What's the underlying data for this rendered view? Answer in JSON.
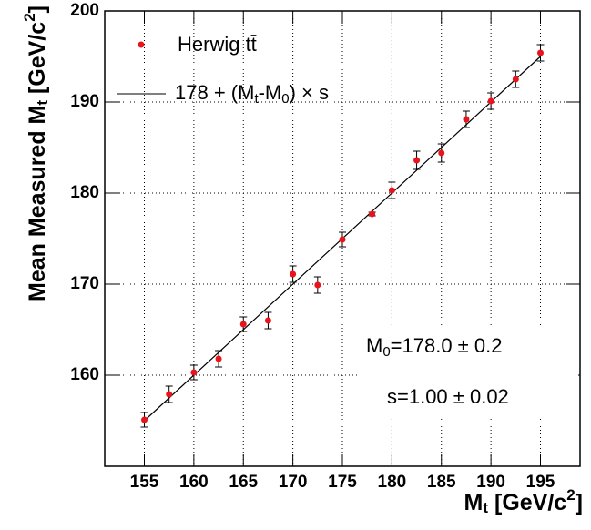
{
  "chart_data": {
    "type": "scatter",
    "x_label": [
      "M",
      "t",
      " [GeV/c",
      "2",
      "]"
    ],
    "y_label": [
      "Mean Measured M",
      "t",
      " [GeV/c",
      "2",
      "]"
    ],
    "xlim": [
      151,
      199
    ],
    "ylim": [
      150,
      200
    ],
    "xticks": [
      155,
      160,
      165,
      170,
      175,
      180,
      185,
      190,
      195
    ],
    "yticks": [
      160,
      170,
      180,
      190,
      200
    ],
    "grid": true,
    "series": [
      {
        "name": "Herwig tt̄",
        "color": "#e8141b",
        "x": [
          155,
          157.5,
          160,
          162.5,
          165,
          167.5,
          170,
          172.5,
          175,
          178,
          180,
          182.5,
          185,
          187.5,
          190,
          192.5,
          195
        ],
        "values": [
          155.1,
          157.9,
          160.3,
          161.8,
          165.6,
          166.0,
          171.1,
          169.9,
          174.9,
          177.7,
          180.3,
          183.6,
          184.4,
          188.1,
          190.1,
          192.5,
          195.4
        ],
        "errors": [
          0.8,
          0.9,
          0.8,
          0.9,
          0.8,
          0.9,
          0.9,
          0.9,
          0.8,
          0.2,
          0.9,
          1.0,
          1.0,
          0.9,
          0.9,
          0.9,
          0.9
        ]
      }
    ],
    "fit": {
      "name": [
        "178 + (M",
        "t",
        "-M",
        "0",
        ") × s"
      ],
      "color": "#000000",
      "m0": 178.0,
      "s": 1.0,
      "xrange": [
        155,
        195
      ]
    },
    "annotations": [
      [
        "M",
        "0",
        "=178.0 ± 0.2"
      ],
      [
        "s=1.00  ± 0.02"
      ]
    ]
  }
}
